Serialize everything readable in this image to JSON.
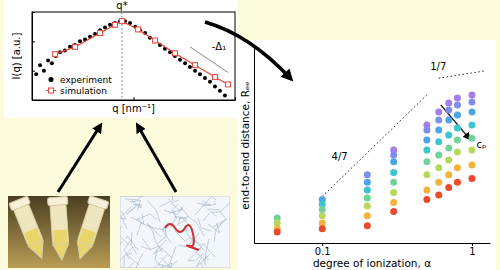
{
  "chart_data": [
    {
      "type": "scatter",
      "xlabel": "q [nm⁻¹]",
      "ylabel": "I(q) [a.u.]",
      "log": true,
      "xlim": [
        0.1,
        10
      ],
      "ylim": [
        0.01,
        10
      ],
      "xticks": [
        0.1,
        1,
        10
      ],
      "yticks": [
        0.01,
        0.1,
        1,
        10
      ],
      "tick_labels": false,
      "legend": "lower left",
      "series": [
        {
          "name": "experiment",
          "type": "scatter",
          "marker": "circle",
          "color": "#000000",
          "x": [
            0.11,
            0.12,
            0.131,
            0.144,
            0.157,
            0.172,
            0.189,
            0.211,
            0.237,
            0.265,
            0.297,
            0.333,
            0.373,
            0.418,
            0.468,
            0.524,
            0.587,
            0.657,
            0.736,
            0.824,
            0.924,
            1.04,
            1.16,
            1.3,
            1.45,
            1.63,
            1.82,
            2.04,
            2.29,
            2.56,
            2.87,
            3.22,
            3.6,
            4.04,
            4.52,
            5.06,
            5.67,
            6.35,
            7.11,
            7.96
          ],
          "values": [
            0.075,
            0.154,
            0.1,
            0.221,
            0.178,
            0.316,
            0.422,
            0.487,
            0.649,
            0.75,
            1.0,
            1.15,
            1.43,
            1.78,
            2.37,
            2.94,
            3.65,
            4.22,
            4.87,
            4.87,
            4.22,
            3.16,
            2.37,
            1.91,
            1.33,
            1.0,
            0.75,
            0.562,
            0.422,
            0.316,
            0.237,
            0.178,
            0.133,
            0.1,
            0.075,
            0.056,
            0.042,
            0.029,
            0.0205,
            0.0143
          ]
        },
        {
          "name": "simulation",
          "type": "line",
          "marker": "square",
          "color": "#e3463a",
          "x": [
            0.169,
            0.265,
            0.468,
            0.657,
            0.77,
            1.11,
            1.63,
            2.56,
            4.04,
            6.35,
            8.53
          ],
          "values": [
            0.365,
            0.649,
            1.91,
            3.65,
            4.87,
            2.55,
            1.07,
            0.392,
            0.154,
            0.0604,
            0.034
          ]
        }
      ],
      "annotations": [
        {
          "text": "q*",
          "x": 0.77,
          "line_style": "dotted"
        },
        {
          "text": "-Δ₁",
          "x": [
            3.6,
            8.53
          ],
          "y": [
            0.649,
            0.0866
          ],
          "line_style": "solid"
        }
      ]
    },
    {
      "type": "scatter",
      "xlabel": "degree of ionization, α",
      "ylabel": "end-to-end distance, Rₑₑ",
      "log": true,
      "xlim": [
        0.035,
        1.32
      ],
      "ylim": [
        1,
        100
      ],
      "xticks": [
        0.1,
        1
      ],
      "tick_labels": "x",
      "x": [
        0.05,
        0.1,
        0.2,
        0.3,
        0.5,
        0.6,
        0.7,
        0.8,
        1.0
      ],
      "series": [
        {
          "color": "#a67ce8",
          "values": [
            null,
            null,
            null,
            9.0,
            16.2,
            22.1,
            27.3,
            30.7,
            33.0
          ]
        },
        {
          "color": "#7f8cf0",
          "values": [
            null,
            null,
            5.0,
            8.0,
            14.4,
            18.3,
            23.1,
            26.0,
            27.9
          ]
        },
        {
          "color": "#4aa6e6",
          "values": [
            null,
            2.8,
            4.2,
            6.8,
            11.4,
            14.4,
            18.3,
            20.5,
            22.1
          ]
        },
        {
          "color": "#3cc4cf",
          "values": [
            null,
            2.5,
            3.5,
            5.3,
            9.0,
            10.9,
            12.8,
            15.1,
            16.2
          ]
        },
        {
          "color": "#72d39a",
          "values": [
            1.8,
            2.2,
            2.9,
            4.2,
            6.8,
            8.0,
            9.4,
            11.4,
            11.9
          ]
        },
        {
          "color": "#b8d85c",
          "values": [
            1.6,
            1.9,
            2.4,
            3.3,
            5.0,
            5.9,
            7.1,
            8.6,
            9.0
          ]
        },
        {
          "color": "#f0b43a",
          "values": [
            1.4,
            1.6,
            1.9,
            2.6,
            3.5,
            4.2,
            5.0,
            5.9,
            6.3
          ]
        },
        {
          "color": "#ea4a2e",
          "values": [
            1.3,
            1.4,
            1.5,
            2.1,
            2.8,
            3.1,
            3.7,
            4.2,
            4.6
          ]
        }
      ],
      "annotations": [
        {
          "text": "4/7",
          "x": [
            0.1,
            0.5
          ],
          "y": [
            3.0,
            33
          ],
          "line_style": "dotted"
        },
        {
          "text": "1/7",
          "x": [
            0.6,
            1.2
          ],
          "y": [
            49,
            58
          ],
          "line_style": "dotted"
        },
        {
          "text": "cₚ",
          "x": [
            0.62,
            0.95
          ],
          "y": [
            26,
            12
          ],
          "line_style": "arrow"
        }
      ]
    }
  ]
}
